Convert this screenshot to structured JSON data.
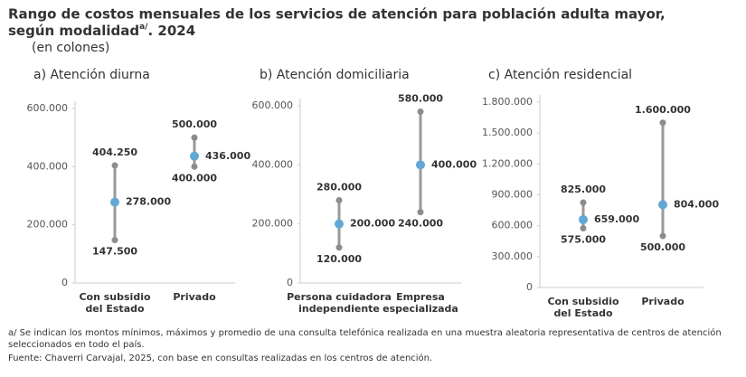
{
  "header": {
    "title_lines": [
      "Rango de costos mensuales de los servicios de atención para población adulta mayor,",
      "según modalidad"
    ],
    "title_sup": "a/",
    "title_end": ". 2024",
    "subtitle": "(en colones)"
  },
  "chart_data": [
    {
      "type": "range",
      "title": "a) Atención diurna",
      "categories": [
        [
          "Con subsidio",
          "del Estado"
        ],
        [
          "Privado"
        ]
      ],
      "series": [
        {
          "name": "Mínimo",
          "color": "#8c8c8c",
          "values": [
            147500,
            400000
          ],
          "value_labels": [
            "147.500",
            "400.000"
          ]
        },
        {
          "name": "Máximo",
          "color": "#8c8c8c",
          "values": [
            404250,
            500000
          ],
          "value_labels": [
            "404.250",
            "500.000"
          ]
        },
        {
          "name": "Promedio",
          "color": "#62a8d4",
          "values": [
            278000,
            436000
          ],
          "value_labels": [
            "278.000",
            "436.000"
          ]
        }
      ],
      "ylim": [
        0,
        600000
      ],
      "yticks": [
        0,
        {
          "value": 200000,
          "label": "200.000"
        },
        {
          "value": 400000,
          "label": "400.000"
        },
        {
          "value": 600000,
          "label": "600.000"
        }
      ]
    },
    {
      "type": "range",
      "title": "b) Atención domiciliaria",
      "categories": [
        [
          "Persona cuidadora",
          "independiente"
        ],
        [
          "Empresa",
          "especializada"
        ]
      ],
      "series": [
        {
          "name": "Mínimo",
          "color": "#8c8c8c",
          "values": [
            120000,
            240000
          ],
          "value_labels": [
            "120.000",
            "240.000"
          ]
        },
        {
          "name": "Máximo",
          "color": "#8c8c8c",
          "values": [
            280000,
            580000
          ],
          "value_labels": [
            "280.000",
            "580.000"
          ]
        },
        {
          "name": "Promedio",
          "color": "#62a8d4",
          "values": [
            200000,
            400000
          ],
          "value_labels": [
            "200.000",
            "400.000"
          ]
        }
      ],
      "ylim": [
        0,
        600000
      ],
      "yticks": [
        0,
        {
          "value": 200000,
          "label": "200.000"
        },
        {
          "value": 400000,
          "label": "400.000"
        },
        {
          "value": 600000,
          "label": "600.000"
        }
      ]
    },
    {
      "type": "range",
      "title": "c) Atención residencial",
      "categories": [
        [
          "Con subsidio",
          "del Estado"
        ],
        [
          "Privado"
        ]
      ],
      "series": [
        {
          "name": "Mínimo",
          "color": "#8c8c8c",
          "values": [
            575000,
            500000
          ],
          "value_labels": [
            "575.000",
            "500.000"
          ]
        },
        {
          "name": "Máximo",
          "color": "#8c8c8c",
          "values": [
            825000,
            1600000
          ],
          "value_labels": [
            "825.000",
            "1.600.000"
          ]
        },
        {
          "name": "Promedio",
          "color": "#62a8d4",
          "values": [
            659000,
            804000
          ],
          "value_labels": [
            "659.000",
            "804.000"
          ]
        }
      ],
      "ylim": [
        0,
        1800000
      ],
      "yticks": [
        0,
        {
          "value": 300000,
          "label": "300.000"
        },
        {
          "value": 600000,
          "label": "600.000"
        },
        {
          "value": 900000,
          "label": "900.000"
        },
        {
          "value": 1200000,
          "label": "1.200.000"
        },
        {
          "value": 1500000,
          "label": "1.500.000"
        },
        {
          "value": 1800000,
          "label": "1.800.000"
        }
      ]
    }
  ],
  "notes": [
    "a/ Se indican los montos mínimos, máximos y promedio de una consulta telefónica realizada en una muestra aleatoria representativa de centros de atención",
    "seleccionados en todo el país.",
    "Fuente: Chaverri Carvajal, 2025, con base en consultas realizadas en los centros de atención."
  ]
}
